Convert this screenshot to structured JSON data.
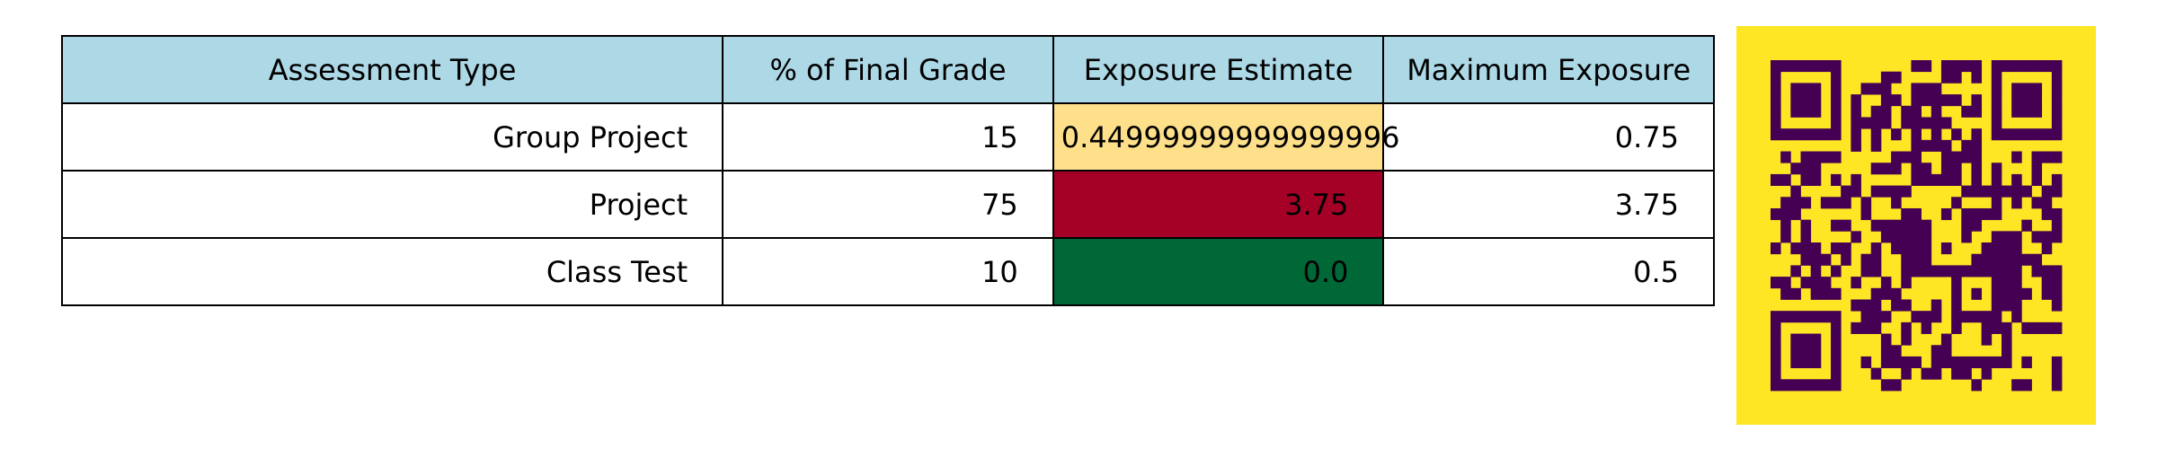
{
  "chart_data": {
    "type": "table",
    "header_color": "#add8e6",
    "columns": [
      "Assessment Type",
      "% of Final Grade",
      "Exposure Estimate",
      "Maximum Exposure"
    ],
    "rows": [
      {
        "type": "Group Project",
        "percent": "15",
        "exposure": "0.44999999999999996",
        "max_exposure": "0.75",
        "exposure_color": "#fee08b"
      },
      {
        "type": "Project",
        "percent": "75",
        "exposure": "3.75",
        "max_exposure": "3.75",
        "exposure_color": "#a50026"
      },
      {
        "type": "Class Test",
        "percent": "10",
        "exposure": "0.0",
        "max_exposure": "0.5",
        "exposure_color": "#006837"
      }
    ]
  },
  "qr_code": {
    "background_color": "#fde725",
    "module_color": "#440154"
  }
}
